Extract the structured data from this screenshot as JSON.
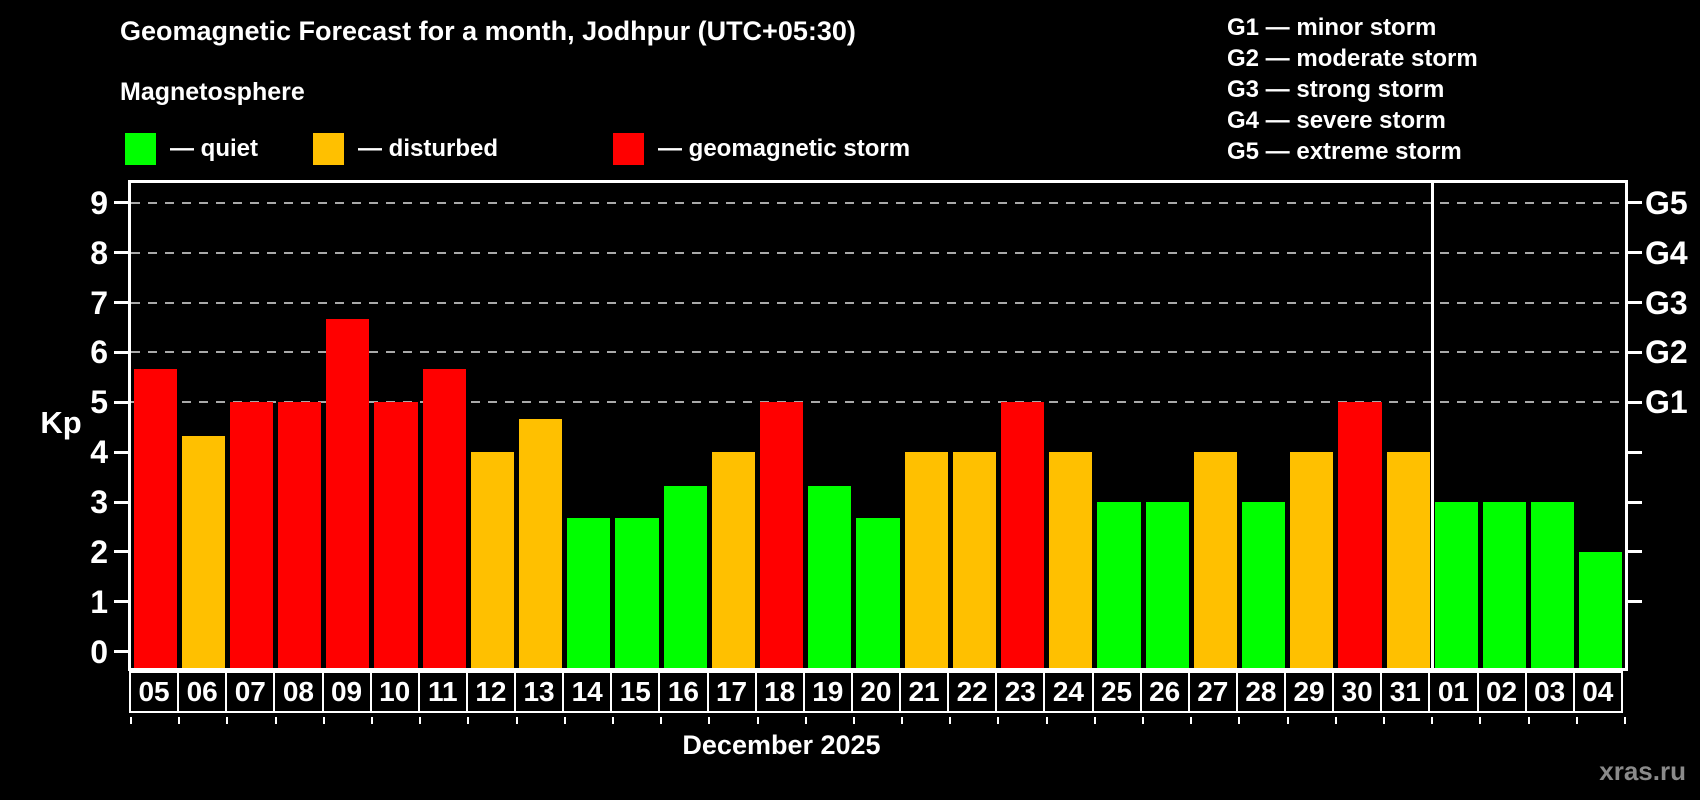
{
  "title": "Geomagnetic Forecast for a month, Jodhpur (UTC+05:30)",
  "subtitle": "Magnetosphere",
  "watermark": "xras.ru",
  "legend": {
    "items": [
      {
        "key": "quiet",
        "label": "— quiet",
        "color": "#00ff00",
        "x": 125
      },
      {
        "key": "disturbed",
        "label": "— disturbed",
        "color": "#ffc000",
        "x": 313
      },
      {
        "key": "storm",
        "label": "— geomagnetic storm",
        "color": "#ff0000",
        "x": 613
      }
    ]
  },
  "g_legend": [
    "G1 — minor storm",
    "G2 — moderate storm",
    "G3 — strong storm",
    "G4 — severe storm",
    "G5 — extreme storm"
  ],
  "chart_data": {
    "type": "bar",
    "title": "Geomagnetic Forecast for a month, Jodhpur (UTC+05:30)",
    "xlabel": "December 2025",
    "ylabel": "Kp",
    "ylim": [
      0,
      9
    ],
    "grid": "dashed horizontal at G-storm levels",
    "legend_position": "top",
    "categories": [
      "05",
      "06",
      "07",
      "08",
      "09",
      "10",
      "11",
      "12",
      "13",
      "14",
      "15",
      "16",
      "17",
      "18",
      "19",
      "20",
      "21",
      "22",
      "23",
      "24",
      "25",
      "26",
      "27",
      "28",
      "29",
      "30",
      "31",
      "01",
      "02",
      "03",
      "04"
    ],
    "values": [
      5.67,
      4.33,
      5,
      5,
      6.67,
      5,
      5.67,
      4,
      4.67,
      2.67,
      2.67,
      3.33,
      4,
      5,
      3.33,
      2.67,
      4,
      4,
      5,
      4,
      3,
      3,
      4,
      3,
      4,
      5,
      4,
      3,
      3,
      3,
      2
    ],
    "statuses": [
      "storm",
      "disturbed",
      "storm",
      "storm",
      "storm",
      "storm",
      "storm",
      "disturbed",
      "disturbed",
      "quiet",
      "quiet",
      "quiet",
      "disturbed",
      "storm",
      "quiet",
      "quiet",
      "disturbed",
      "disturbed",
      "storm",
      "disturbed",
      "quiet",
      "quiet",
      "disturbed",
      "quiet",
      "disturbed",
      "storm",
      "disturbed",
      "quiet",
      "quiet",
      "quiet",
      "quiet"
    ],
    "colors": {
      "quiet": "#00ff00",
      "disturbed": "#ffc000",
      "storm": "#ff0000"
    },
    "yticks": [
      0,
      1,
      2,
      3,
      4,
      5,
      6,
      7,
      8,
      9
    ],
    "right_ticks": [
      1,
      2,
      3,
      4,
      5,
      6,
      7,
      8,
      9
    ],
    "gridlines_at": [
      5,
      6,
      7,
      8,
      9
    ],
    "right_axis": {
      "labels": [
        "G5",
        "G4",
        "G3",
        "G2",
        "G1"
      ],
      "kp": [
        9,
        8,
        7,
        6,
        5
      ]
    },
    "month_divider_slot": 27
  }
}
